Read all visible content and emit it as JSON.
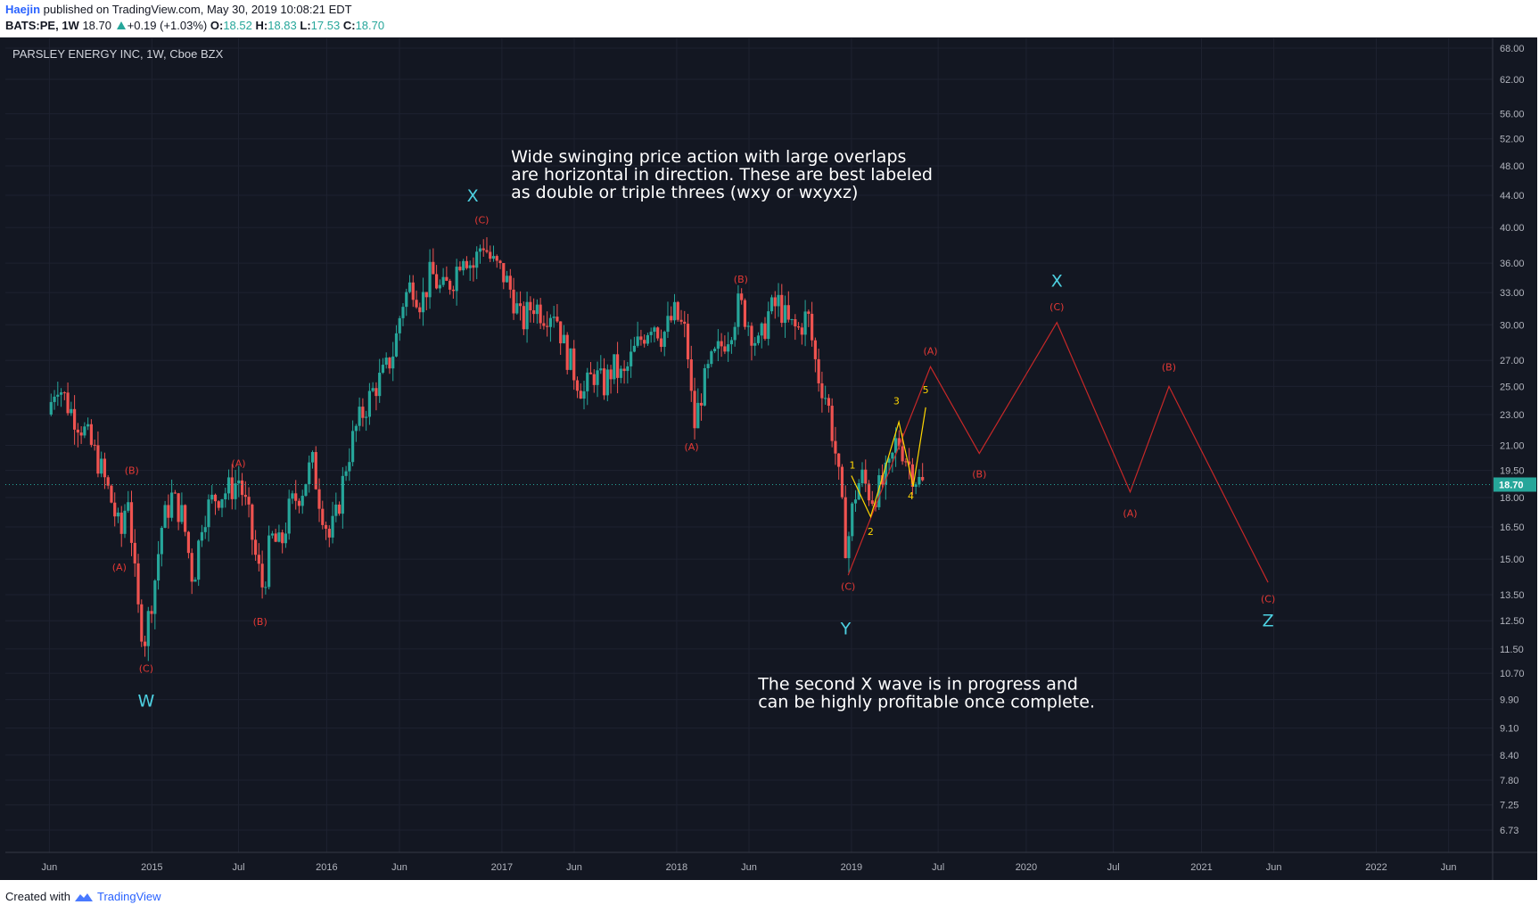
{
  "header": {
    "author": "Haejin",
    "published": "published on TradingView.com, May 30, 2019 10:08:21 EDT",
    "symbol": "BATS:PE, 1W",
    "last": "18.70",
    "change": "+0.19 (+1.03%)",
    "o_label": "O:",
    "o_value": "18.52",
    "h_label": "H:",
    "h_value": "18.83",
    "l_label": "L:",
    "l_value": "17.53",
    "c_label": "C:",
    "c_value": "18.70"
  },
  "footer": {
    "created_with": "Created with",
    "brand": "TradingView"
  },
  "colors": {
    "background": "#131722",
    "up": "#26a69a",
    "down": "#ef5350",
    "wave": "#e53935",
    "impulse": "#ffd600",
    "cyan": "#4dd0e1",
    "price_tag": "#26a69a"
  },
  "chart_data": {
    "type": "candlestick",
    "title": "PARSLEY ENERGY INC, 1W, Cboe BZX",
    "y_scale": "log",
    "ylim": [
      6.3,
      70
    ],
    "last_price": "18.70",
    "y_ticks": [
      "68.00",
      "62.00",
      "56.00",
      "52.00",
      "48.00",
      "44.00",
      "40.00",
      "36.00",
      "33.00",
      "30.00",
      "27.00",
      "25.00",
      "23.00",
      "21.00",
      "19.50",
      "18.00",
      "16.50",
      "15.00",
      "13.50",
      "12.50",
      "11.50",
      "10.70",
      "9.90",
      "9.10",
      "8.40",
      "7.80",
      "7.25",
      "6.73"
    ],
    "x_ticks": [
      "Jun",
      "2015",
      "Jul",
      "2016",
      "Jun",
      "2017",
      "Jun",
      "2018",
      "Jun",
      "2019",
      "Jul",
      "2020",
      "Jul",
      "2021",
      "Jun",
      "2022",
      "Jun"
    ],
    "xlim": [
      "2014-03-01",
      "2022-09-01"
    ],
    "x_tick_dates": [
      "2014-06-01",
      "2015-01-01",
      "2015-07-01",
      "2016-01-01",
      "2016-06-01",
      "2017-01-01",
      "2017-06-01",
      "2018-01-01",
      "2018-06-01",
      "2019-01-01",
      "2019-07-01",
      "2020-01-01",
      "2020-07-01",
      "2021-01-01",
      "2021-06-01",
      "2022-01-01",
      "2022-06-01"
    ],
    "price_path": [
      [
        "2014-06-01",
        23
      ],
      [
        "2014-06-20",
        25.5
      ],
      [
        "2014-07-15",
        23.5
      ],
      [
        "2014-08-15",
        22
      ],
      [
        "2014-09-15",
        20
      ],
      [
        "2014-10-10",
        18
      ],
      [
        "2014-11-01",
        16
      ],
      [
        "2014-11-15",
        18.5
      ],
      [
        "2014-12-05",
        13
      ],
      [
        "2014-12-20",
        11.8
      ],
      [
        "2015-01-10",
        14
      ],
      [
        "2015-01-25",
        16.5
      ],
      [
        "2015-02-15",
        18
      ],
      [
        "2015-03-10",
        17
      ],
      [
        "2015-04-01",
        14
      ],
      [
        "2015-04-20",
        17
      ],
      [
        "2015-05-15",
        18
      ],
      [
        "2015-06-20",
        18.5
      ],
      [
        "2015-07-05",
        19
      ],
      [
        "2015-07-25",
        17
      ],
      [
        "2015-08-10",
        15
      ],
      [
        "2015-08-25",
        13.7
      ],
      [
        "2015-09-10",
        16
      ],
      [
        "2015-09-30",
        15.5
      ],
      [
        "2015-10-20",
        17.5
      ],
      [
        "2015-11-15",
        18.5
      ],
      [
        "2015-12-05",
        20
      ],
      [
        "2015-12-20",
        18
      ],
      [
        "2016-01-10",
        16
      ],
      [
        "2016-01-25",
        17
      ],
      [
        "2016-02-15",
        20
      ],
      [
        "2016-03-05",
        22
      ],
      [
        "2016-03-25",
        23.5
      ],
      [
        "2016-04-15",
        25
      ],
      [
        "2016-05-05",
        26
      ],
      [
        "2016-05-25",
        28
      ],
      [
        "2016-06-10",
        32
      ],
      [
        "2016-07-01",
        34
      ],
      [
        "2016-07-20",
        32
      ],
      [
        "2016-08-10",
        35
      ],
      [
        "2016-09-01",
        33
      ],
      [
        "2016-09-25",
        34.5
      ],
      [
        "2016-10-15",
        37.5
      ],
      [
        "2016-11-05",
        35.5
      ],
      [
        "2016-11-25",
        38.5
      ],
      [
        "2016-12-15",
        36
      ],
      [
        "2017-01-05",
        35
      ],
      [
        "2017-01-25",
        33
      ],
      [
        "2017-02-15",
        30
      ],
      [
        "2017-03-10",
        32
      ],
      [
        "2017-04-01",
        31
      ],
      [
        "2017-04-25",
        31.5
      ],
      [
        "2017-05-15",
        28
      ],
      [
        "2017-06-05",
        26
      ],
      [
        "2017-06-25",
        24.5
      ],
      [
        "2017-07-15",
        26
      ],
      [
        "2017-08-05",
        25
      ],
      [
        "2017-08-25",
        26.5
      ],
      [
        "2017-09-15",
        25.5
      ],
      [
        "2017-10-05",
        27.5
      ],
      [
        "2017-10-25",
        29
      ],
      [
        "2017-11-15",
        30.5
      ],
      [
        "2017-12-05",
        29
      ],
      [
        "2018-01-01",
        31
      ],
      [
        "2018-01-25",
        29
      ],
      [
        "2018-02-09",
        22
      ],
      [
        "2018-02-25",
        24.5
      ],
      [
        "2018-03-15",
        26.5
      ],
      [
        "2018-04-05",
        28
      ],
      [
        "2018-04-25",
        29.5
      ],
      [
        "2018-05-15",
        32
      ],
      [
        "2018-06-05",
        30
      ],
      [
        "2018-06-25",
        28
      ],
      [
        "2018-07-15",
        31
      ],
      [
        "2018-08-05",
        32
      ],
      [
        "2018-08-25",
        30
      ],
      [
        "2018-09-15",
        29.5
      ],
      [
        "2018-10-05",
        31
      ],
      [
        "2018-10-25",
        26
      ],
      [
        "2018-11-15",
        24
      ],
      [
        "2018-12-05",
        20
      ],
      [
        "2018-12-25",
        15.3
      ],
      [
        "2019-01-10",
        18
      ],
      [
        "2019-01-25",
        19.2
      ],
      [
        "2019-02-15",
        18
      ],
      [
        "2019-03-05",
        18.5
      ],
      [
        "2019-03-25",
        19.5
      ],
      [
        "2019-04-10",
        21.5
      ],
      [
        "2019-04-25",
        20.5
      ],
      [
        "2019-05-10",
        19.5
      ],
      [
        "2019-05-30",
        18.7
      ]
    ],
    "wave_projection": [
      [
        "2018-12-25",
        14.3
      ],
      [
        "2019-06-15",
        26.5
      ],
      [
        "2019-09-25",
        20.5
      ],
      [
        "2020-03-05",
        30.2
      ],
      [
        "2020-08-05",
        18.3
      ],
      [
        "2020-10-25",
        25
      ],
      [
        "2021-05-20",
        14
      ]
    ],
    "impulse_path": [
      [
        "2019-01-01",
        19.2
      ],
      [
        "2019-02-10",
        17
      ],
      [
        "2019-04-10",
        22.5
      ],
      [
        "2019-05-10",
        18.6
      ],
      [
        "2019-06-05",
        23.5
      ]
    ],
    "wave_labels": [
      {
        "text": "(B)",
        "date": "2014-11-20",
        "price": 19.3,
        "kind": "sub"
      },
      {
        "text": "(A)",
        "date": "2014-10-25",
        "price": 14.5,
        "kind": "sub"
      },
      {
        "text": "(C)",
        "date": "2014-12-20",
        "price": 10.75,
        "kind": "sub"
      },
      {
        "text": "W",
        "date": "2014-12-20",
        "price": 9.7,
        "kind": "major"
      },
      {
        "text": "(A)",
        "date": "2015-07-01",
        "price": 19.7,
        "kind": "sub"
      },
      {
        "text": "(B)",
        "date": "2015-08-15",
        "price": 12.35,
        "kind": "sub"
      },
      {
        "text": "X",
        "date": "2016-11-01",
        "price": 43.2,
        "kind": "major"
      },
      {
        "text": "(C)",
        "date": "2016-11-20",
        "price": 40.5,
        "kind": "sub"
      },
      {
        "text": "(A)",
        "date": "2018-02-01",
        "price": 20.7,
        "kind": "sub"
      },
      {
        "text": "(B)",
        "date": "2018-05-15",
        "price": 34.0,
        "kind": "sub"
      },
      {
        "text": "(C)",
        "date": "2018-12-25",
        "price": 13.7,
        "kind": "sub"
      },
      {
        "text": "Y",
        "date": "2018-12-20",
        "price": 12.0,
        "kind": "major"
      },
      {
        "text": "1",
        "date": "2019-01-03",
        "price": 19.6,
        "kind": "impulse"
      },
      {
        "text": "2",
        "date": "2019-02-10",
        "price": 16.1,
        "kind": "impulse"
      },
      {
        "text": "3",
        "date": "2019-04-05",
        "price": 23.7,
        "kind": "impulse"
      },
      {
        "text": "4",
        "date": "2019-05-05",
        "price": 17.9,
        "kind": "impulse"
      },
      {
        "text": "5",
        "date": "2019-06-05",
        "price": 24.5,
        "kind": "impulse"
      },
      {
        "text": "(A)",
        "date": "2019-06-15",
        "price": 27.5,
        "kind": "sub"
      },
      {
        "text": "(B)",
        "date": "2019-09-25",
        "price": 19.1,
        "kind": "sub"
      },
      {
        "text": "X",
        "date": "2020-03-05",
        "price": 33.6,
        "kind": "major"
      },
      {
        "text": "(C)",
        "date": "2020-03-05",
        "price": 31.3,
        "kind": "sub"
      },
      {
        "text": "(A)",
        "date": "2020-08-05",
        "price": 17.0,
        "kind": "sub"
      },
      {
        "text": "(B)",
        "date": "2020-10-25",
        "price": 26.2,
        "kind": "sub"
      },
      {
        "text": "(C)",
        "date": "2021-05-20",
        "price": 13.2,
        "kind": "sub"
      },
      {
        "text": "Z",
        "date": "2021-05-20",
        "price": 12.3,
        "kind": "major"
      }
    ],
    "annotations": [
      {
        "lines": [
          "Wide swinging price action with large overlaps",
          "are horizontal in direction. These are best labeled",
          "as double or triple threes (wxy or wxyxz)"
        ],
        "date": "2017-01-20",
        "price": 48.5
      },
      {
        "lines": [
          "The second X wave is in progress and",
          "can be highly profitable once complete."
        ],
        "date": "2018-06-20",
        "price": 10.2
      }
    ]
  }
}
